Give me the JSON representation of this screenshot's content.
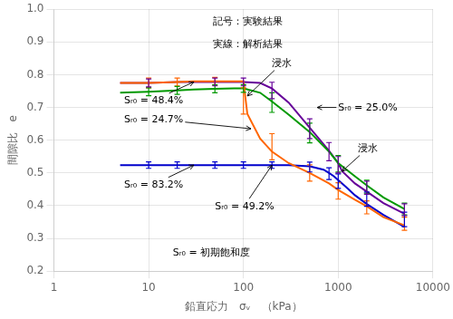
{
  "chart_data": {
    "type": "line",
    "xlabel": "鉛直応力　σᵥ　（kPa）",
    "ylabel": "間隙比　e",
    "log": "x",
    "grid": true,
    "xlim": [
      1,
      10000
    ],
    "xticks": [
      1,
      10,
      100,
      1000,
      10000
    ],
    "ylim": [
      0.2,
      1.0
    ],
    "yticks": [
      0.2,
      0.3,
      0.4,
      0.5,
      0.6,
      0.7,
      0.8,
      0.9,
      {
        "value": 1.0,
        "label": "1.0"
      }
    ],
    "series": [
      {
        "type": "line",
        "color": "#FF6600",
        "x": [
          5,
          10,
          20,
          30,
          50,
          80,
          100,
          110,
          150,
          200,
          300,
          500,
          800,
          1000,
          1500,
          2000,
          3000,
          5000
        ],
        "values": [
          0.775,
          0.775,
          0.778,
          0.78,
          0.78,
          0.78,
          0.78,
          0.68,
          0.605,
          0.565,
          0.53,
          0.5,
          0.468,
          0.448,
          0.418,
          0.398,
          0.365,
          0.34
        ]
      },
      {
        "type": "line",
        "color": "#009900",
        "x": [
          5,
          10,
          20,
          30,
          50,
          80,
          100,
          150,
          200,
          300,
          500,
          800,
          1000,
          1500,
          2000,
          3000,
          5000
        ],
        "values": [
          0.745,
          0.748,
          0.752,
          0.755,
          0.757,
          0.758,
          0.758,
          0.745,
          0.718,
          0.678,
          0.625,
          0.565,
          0.53,
          0.49,
          0.462,
          0.425,
          0.39
        ]
      },
      {
        "type": "line",
        "color": "#0000CC",
        "x": [
          5,
          10,
          20,
          30,
          50,
          100,
          200,
          300,
          500,
          700,
          800,
          900,
          1000,
          1200,
          1500,
          2000,
          3000,
          5000
        ],
        "values": [
          0.524,
          0.524,
          0.524,
          0.524,
          0.524,
          0.524,
          0.524,
          0.524,
          0.52,
          0.51,
          0.5,
          0.49,
          0.478,
          0.458,
          0.432,
          0.405,
          0.372,
          0.335
        ]
      },
      {
        "type": "line",
        "color": "#660099",
        "x": [
          5,
          10,
          20,
          30,
          50,
          80,
          100,
          150,
          200,
          300,
          500,
          800,
          1000,
          1100,
          1500,
          2000,
          3000,
          5000
        ],
        "values": [
          0.775,
          0.775,
          0.778,
          0.778,
          0.778,
          0.778,
          0.778,
          0.775,
          0.758,
          0.715,
          0.638,
          0.568,
          0.53,
          0.505,
          0.468,
          0.443,
          0.408,
          0.375
        ]
      },
      {
        "type": "errorbar",
        "color": "#FF6600",
        "x": [
          10,
          20,
          50,
          100,
          200,
          500,
          1000,
          2000,
          5000
        ],
        "values": [
          0.775,
          0.778,
          0.78,
          0.72,
          0.58,
          0.5,
          0.445,
          0.395,
          0.345
        ],
        "yerr_lo": [
          0.015,
          0.012,
          0.012,
          0.04,
          0.04,
          0.025,
          0.025,
          0.02,
          0.02
        ],
        "yerr_hi": [
          0.015,
          0.012,
          0.012,
          0.04,
          0.04,
          0.025,
          0.025,
          0.02,
          0.02
        ]
      },
      {
        "type": "errorbar",
        "color": "#009900",
        "x": [
          10,
          20,
          50,
          100,
          200,
          500,
          1000,
          2000,
          5000
        ],
        "values": [
          0.748,
          0.752,
          0.757,
          0.758,
          0.715,
          0.622,
          0.528,
          0.458,
          0.39
        ],
        "yerr_lo": [
          0.012,
          0.012,
          0.012,
          0.012,
          0.03,
          0.03,
          0.025,
          0.02,
          0.018
        ],
        "yerr_hi": [
          0.012,
          0.012,
          0.012,
          0.012,
          0.03,
          0.03,
          0.025,
          0.02,
          0.018
        ]
      },
      {
        "type": "errorbar",
        "color": "#0000CC",
        "x": [
          10,
          20,
          50,
          100,
          200,
          500,
          800,
          1000,
          2000,
          5000
        ],
        "values": [
          0.524,
          0.524,
          0.524,
          0.524,
          0.524,
          0.518,
          0.498,
          0.475,
          0.42,
          0.358
        ],
        "yerr_lo": [
          0.01,
          0.01,
          0.01,
          0.01,
          0.01,
          0.015,
          0.018,
          0.022,
          0.022,
          0.022
        ],
        "yerr_hi": [
          0.01,
          0.01,
          0.01,
          0.01,
          0.01,
          0.015,
          0.018,
          0.022,
          0.022,
          0.022
        ]
      },
      {
        "type": "errorbar",
        "color": "#660099",
        "x": [
          10,
          50,
          100,
          200,
          500,
          800,
          1000,
          2000,
          5000
        ],
        "values": [
          0.775,
          0.778,
          0.778,
          0.752,
          0.635,
          0.565,
          0.525,
          0.455,
          0.388
        ],
        "yerr_lo": [
          0.012,
          0.012,
          0.012,
          0.025,
          0.03,
          0.028,
          0.025,
          0.02,
          0.018
        ],
        "yerr_hi": [
          0.012,
          0.012,
          0.012,
          0.025,
          0.03,
          0.028,
          0.025,
          0.02,
          0.018
        ]
      }
    ],
    "annotations": [
      {
        "text": "記号：実験結果"
      },
      {
        "text": "実線：解析結果"
      },
      {
        "text": "浸水",
        "x": 200,
        "y": 0.825,
        "arrow_to": [
          110,
          0.735
        ]
      },
      {
        "text": "浸水",
        "x": 1600,
        "y": 0.565,
        "arrow_to": [
          1100,
          0.505
        ]
      },
      {
        "text": "Sᵣ₀ = 48.4%",
        "x": 5.5,
        "y": 0.712,
        "arrow_to": [
          30,
          0.778
        ]
      },
      {
        "text": "Sᵣ₀ = 24.7%",
        "x": 5.5,
        "y": 0.655,
        "arrow_to": [
          120,
          0.635
        ]
      },
      {
        "text": "Sᵣ₀ = 83.2%",
        "x": 5.5,
        "y": 0.455,
        "arrow_to": [
          30,
          0.524
        ]
      },
      {
        "text": "Sᵣ₀ = 49.2%",
        "x": 50,
        "y": 0.39,
        "arrow_to": [
          200,
          0.524
        ]
      },
      {
        "text": "Sᵣ₀ = 25.0%",
        "x": 1000,
        "y": 0.69,
        "arrow_to": [
          600,
          0.7
        ]
      },
      {
        "text": "Sᵣ₀ = 初期飽和度",
        "x": 18,
        "y": 0.248
      }
    ]
  }
}
